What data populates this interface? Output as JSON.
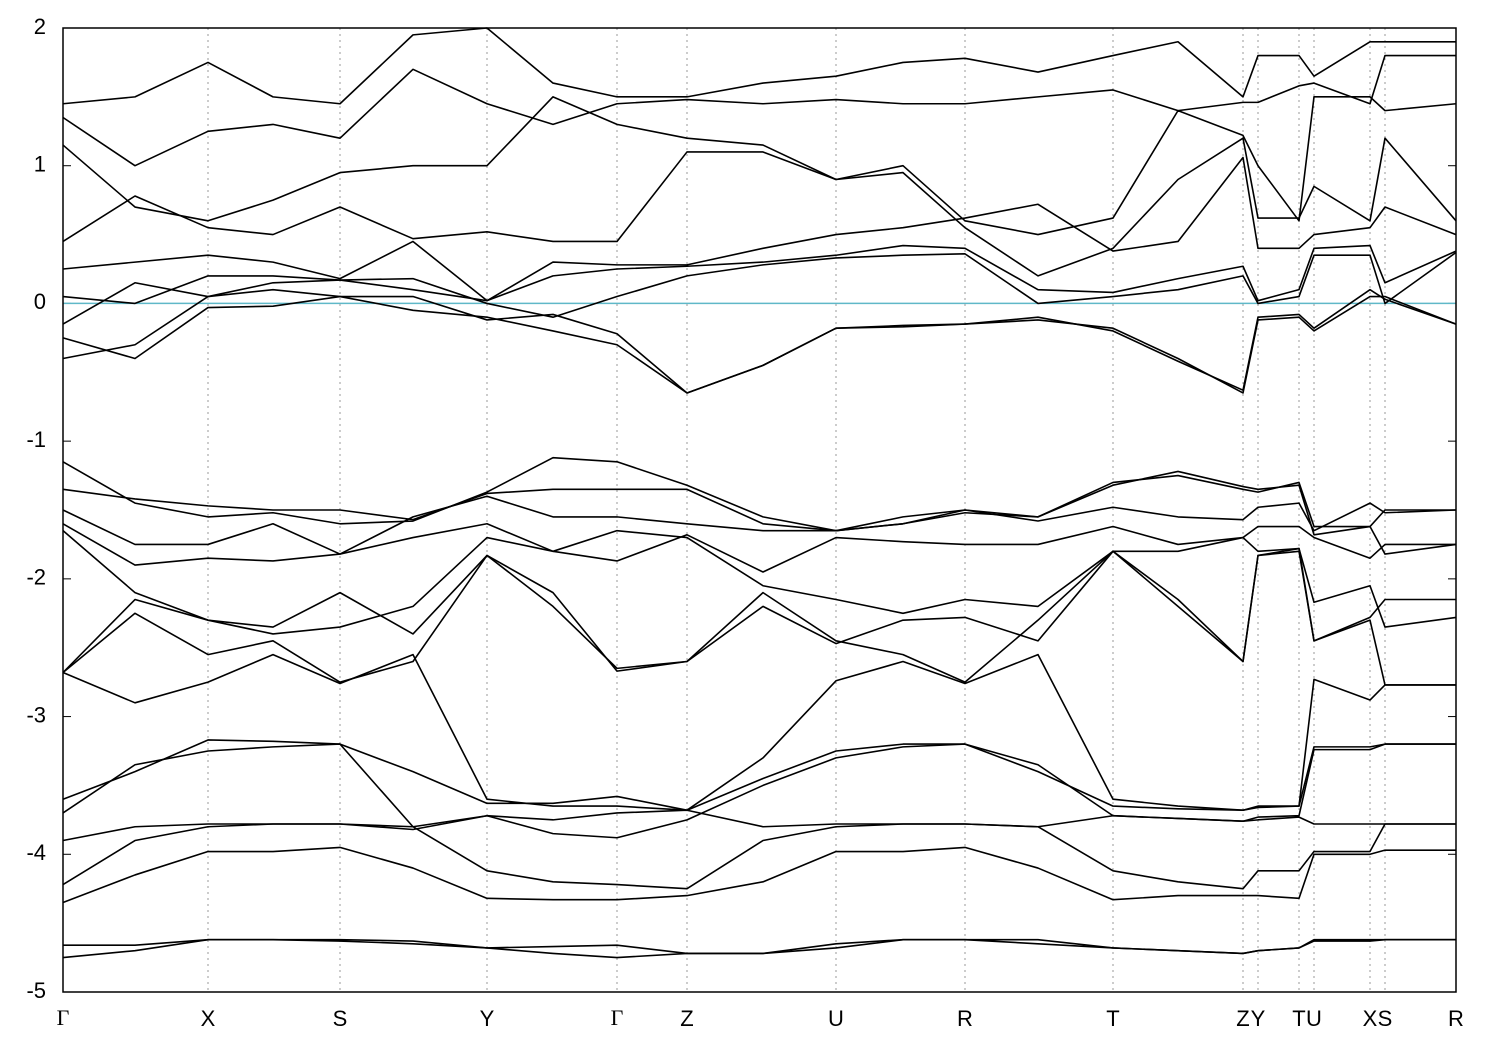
{
  "chart_data": {
    "type": "line",
    "x": [
      0,
      72,
      145,
      210,
      277,
      350,
      424,
      490,
      554,
      624,
      700,
      773,
      840,
      902,
      975,
      1050,
      1115,
      1180,
      1195,
      1236,
      1251,
      1307,
      1322,
      1393
    ],
    "xlim": [
      0,
      1393
    ],
    "xticks": [
      {
        "value": 0,
        "label": "Γ"
      },
      {
        "value": 145,
        "label": "X"
      },
      {
        "value": 277,
        "label": "S"
      },
      {
        "value": 424,
        "label": "Y"
      },
      {
        "value": 554,
        "label": "Γ"
      },
      {
        "value": 624,
        "label": "Z"
      },
      {
        "value": 773,
        "label": "U"
      },
      {
        "value": 902,
        "label": "R"
      },
      {
        "value": 1050,
        "label": "T"
      },
      {
        "value": 1180,
        "label": "Z"
      },
      {
        "value": 1195,
        "label": "Y"
      },
      {
        "value": 1236,
        "label": "T"
      },
      {
        "value": 1251,
        "label": "U"
      },
      {
        "value": 1307,
        "label": "X"
      },
      {
        "value": 1322,
        "label": "S"
      },
      {
        "value": 1393,
        "label": "R"
      }
    ],
    "ylim": [
      -5,
      2
    ],
    "yticks": [
      -5,
      -4,
      -3,
      -2,
      -1,
      0,
      1,
      2
    ],
    "grid": true,
    "fermi_level": 0,
    "fermi_color": "#5fb8c8",
    "series": [
      {
        "color": "#000000",
        "values": [
          -4.75,
          -4.7,
          -4.62,
          -4.62,
          -4.63,
          -4.65,
          -4.68,
          -4.72,
          -4.75,
          -4.72,
          -4.72,
          -4.68,
          -4.62,
          -4.62,
          -4.65,
          -4.68,
          -4.7,
          -4.72,
          -4.7,
          -4.68,
          -4.62,
          -4.62,
          -4.62,
          -4.62
        ]
      },
      {
        "color": "#000000",
        "values": [
          -4.66,
          -4.66,
          -4.62,
          -4.62,
          -4.62,
          -4.63,
          -4.68,
          -4.67,
          -4.66,
          -4.72,
          -4.72,
          -4.65,
          -4.62,
          -4.62,
          -4.62,
          -4.68,
          -4.7,
          -4.72,
          -4.7,
          -4.68,
          -4.63,
          -4.63,
          -4.62,
          -4.62
        ]
      },
      {
        "color": "#000000",
        "values": [
          -4.35,
          -4.15,
          -3.98,
          -3.98,
          -3.95,
          -4.1,
          -4.32,
          -4.33,
          -4.33,
          -4.3,
          -4.2,
          -3.98,
          -3.98,
          -3.95,
          -4.1,
          -4.33,
          -4.3,
          -4.3,
          -4.3,
          -4.32,
          -4.0,
          -4.0,
          -3.97,
          -3.97
        ]
      },
      {
        "color": "#000000",
        "values": [
          -4.22,
          -3.9,
          -3.8,
          -3.78,
          -3.78,
          -3.8,
          -4.12,
          -4.2,
          -4.22,
          -4.25,
          -3.9,
          -3.8,
          -3.78,
          -3.78,
          -3.8,
          -4.12,
          -4.2,
          -4.25,
          -4.12,
          -4.12,
          -3.98,
          -3.98,
          -3.78,
          -3.78
        ]
      },
      {
        "color": "#000000",
        "values": [
          -3.9,
          -3.8,
          -3.78,
          -3.78,
          -3.78,
          -3.82,
          -3.72,
          -3.75,
          -3.7,
          -3.68,
          -3.8,
          -3.78,
          -3.78,
          -3.78,
          -3.8,
          -3.72,
          -3.74,
          -3.76,
          -3.75,
          -3.73,
          -3.78,
          -3.78,
          -3.78,
          -3.78
        ]
      },
      {
        "color": "#000000",
        "values": [
          -3.6,
          -3.4,
          -3.17,
          -3.18,
          -3.2,
          -3.4,
          -3.63,
          -3.63,
          -3.58,
          -3.68,
          -3.45,
          -3.25,
          -3.2,
          -3.2,
          -3.4,
          -3.65,
          -3.67,
          -3.68,
          -3.66,
          -3.65,
          -3.22,
          -3.22,
          -3.2,
          -3.2
        ]
      },
      {
        "color": "#000000",
        "values": [
          -3.7,
          -3.35,
          -3.25,
          -3.22,
          -3.2,
          -3.8,
          -3.72,
          -3.85,
          -3.88,
          -3.75,
          -3.5,
          -3.3,
          -3.22,
          -3.2,
          -3.35,
          -3.72,
          -3.74,
          -3.76,
          -3.73,
          -3.72,
          -3.24,
          -3.24,
          -3.2,
          -3.2
        ]
      },
      {
        "color": "#000000",
        "values": [
          -2.68,
          -2.9,
          -2.75,
          -2.55,
          -2.76,
          -2.55,
          -3.6,
          -3.65,
          -3.65,
          -3.68,
          -3.3,
          -2.74,
          -2.6,
          -2.76,
          -2.55,
          -3.6,
          -3.65,
          -3.68,
          -3.65,
          -3.65,
          -2.73,
          -2.88,
          -2.77,
          -2.77
        ]
      },
      {
        "color": "#000000",
        "values": [
          -2.68,
          -2.25,
          -2.55,
          -2.45,
          -2.75,
          -2.6,
          -1.83,
          -2.2,
          -2.65,
          -2.6,
          -2.1,
          -2.45,
          -2.55,
          -2.75,
          -2.3,
          -1.8,
          -2.2,
          -2.6,
          -1.83,
          -1.8,
          -2.45,
          -2.3,
          -2.77,
          -2.77
        ]
      },
      {
        "color": "#000000",
        "values": [
          -2.68,
          -2.15,
          -2.3,
          -2.35,
          -2.1,
          -2.4,
          -1.83,
          -2.1,
          -2.67,
          -2.6,
          -2.2,
          -2.47,
          -2.3,
          -2.28,
          -2.45,
          -1.8,
          -2.15,
          -2.6,
          -1.83,
          -1.78,
          -2.17,
          -2.05,
          -2.35,
          -2.28
        ]
      },
      {
        "color": "#000000",
        "values": [
          -1.65,
          -2.1,
          -2.3,
          -2.4,
          -2.35,
          -2.2,
          -1.7,
          -1.8,
          -1.65,
          -1.7,
          -2.05,
          -2.15,
          -2.25,
          -2.15,
          -2.2,
          -1.8,
          -1.8,
          -1.7,
          -1.8,
          -1.78,
          -2.45,
          -2.28,
          -2.15,
          -2.15
        ]
      },
      {
        "color": "#000000",
        "values": [
          -1.6,
          -1.9,
          -1.85,
          -1.87,
          -1.82,
          -1.7,
          -1.6,
          -1.8,
          -1.87,
          -1.68,
          -1.95,
          -1.7,
          -1.73,
          -1.75,
          -1.75,
          -1.62,
          -1.75,
          -1.7,
          -1.62,
          -1.62,
          -1.7,
          -1.85,
          -1.75,
          -1.75
        ]
      },
      {
        "color": "#000000",
        "values": [
          -1.5,
          -1.75,
          -1.75,
          -1.6,
          -1.82,
          -1.55,
          -1.4,
          -1.55,
          -1.55,
          -1.6,
          -1.65,
          -1.65,
          -1.6,
          -1.5,
          -1.58,
          -1.48,
          -1.55,
          -1.57,
          -1.48,
          -1.45,
          -1.65,
          -1.45,
          -1.52,
          -1.5
        ]
      },
      {
        "color": "#000000",
        "values": [
          -1.35,
          -1.42,
          -1.47,
          -1.5,
          -1.5,
          -1.57,
          -1.38,
          -1.35,
          -1.35,
          -1.35,
          -1.6,
          -1.65,
          -1.55,
          -1.5,
          -1.55,
          -1.3,
          -1.25,
          -1.35,
          -1.37,
          -1.3,
          -1.62,
          -1.62,
          -1.82,
          -1.75
        ]
      },
      {
        "color": "#000000",
        "values": [
          -1.15,
          -1.45,
          -1.55,
          -1.52,
          -1.6,
          -1.58,
          -1.37,
          -1.12,
          -1.15,
          -1.32,
          -1.55,
          -1.65,
          -1.6,
          -1.52,
          -1.55,
          -1.32,
          -1.22,
          -1.33,
          -1.35,
          -1.32,
          -1.68,
          -1.62,
          -1.5,
          -1.5
        ]
      },
      {
        "color": "#000000",
        "values": [
          -0.4,
          -0.3,
          0.05,
          0.1,
          0.05,
          -0.05,
          -0.1,
          -0.2,
          -0.3,
          -0.65,
          -0.45,
          -0.18,
          -0.17,
          -0.15,
          -0.12,
          -0.18,
          -0.4,
          -0.65,
          -0.12,
          -0.1,
          -0.2,
          0.05,
          0.05,
          -0.15
        ]
      },
      {
        "color": "#000000",
        "values": [
          -0.25,
          -0.4,
          -0.03,
          -0.02,
          0.05,
          0.05,
          -0.12,
          -0.08,
          -0.22,
          -0.65,
          -0.45,
          -0.18,
          -0.16,
          -0.15,
          -0.1,
          -0.2,
          -0.42,
          -0.63,
          -0.1,
          -0.08,
          -0.18,
          0.1,
          0.03,
          -0.15
        ]
      },
      {
        "color": "#000000",
        "values": [
          -0.15,
          0.15,
          0.05,
          0.15,
          0.17,
          0.18,
          0.0,
          -0.1,
          0.05,
          0.2,
          0.28,
          0.33,
          0.35,
          0.36,
          0.0,
          0.05,
          0.1,
          0.2,
          0.0,
          0.05,
          0.35,
          0.35,
          0.0,
          0.37
        ]
      },
      {
        "color": "#000000",
        "values": [
          0.05,
          0.0,
          0.2,
          0.2,
          0.17,
          0.1,
          0.02,
          0.2,
          0.25,
          0.27,
          0.3,
          0.35,
          0.42,
          0.4,
          0.1,
          0.08,
          0.18,
          0.27,
          0.02,
          0.1,
          0.4,
          0.42,
          0.15,
          0.38
        ]
      },
      {
        "color": "#000000",
        "values": [
          0.25,
          0.3,
          0.35,
          0.3,
          0.18,
          0.45,
          0.02,
          0.3,
          0.28,
          0.28,
          0.4,
          0.5,
          0.55,
          0.62,
          0.72,
          0.38,
          0.45,
          1.06,
          0.4,
          0.4,
          0.5,
          0.55,
          0.7,
          0.5
        ]
      },
      {
        "color": "#000000",
        "values": [
          0.45,
          0.78,
          0.55,
          0.5,
          0.7,
          0.47,
          0.52,
          0.45,
          0.45,
          1.1,
          1.1,
          0.9,
          0.95,
          0.55,
          0.2,
          0.4,
          0.9,
          1.2,
          0.62,
          0.62,
          0.85,
          0.6,
          1.2,
          0.6
        ]
      },
      {
        "color": "#000000",
        "values": [
          1.15,
          0.7,
          0.6,
          0.75,
          0.95,
          1.0,
          1.0,
          1.5,
          1.3,
          1.2,
          1.15,
          0.9,
          1.0,
          0.6,
          0.5,
          0.62,
          1.4,
          1.22,
          1.0,
          0.6,
          1.5,
          1.5,
          1.4,
          1.45
        ]
      },
      {
        "color": "#000000",
        "values": [
          1.35,
          1.0,
          1.25,
          1.3,
          1.2,
          1.7,
          1.45,
          1.3,
          1.45,
          1.48,
          1.45,
          1.48,
          1.45,
          1.45,
          1.5,
          1.55,
          1.4,
          1.46,
          1.46,
          1.58,
          1.6,
          1.45,
          1.8,
          1.8
        ]
      },
      {
        "color": "#000000",
        "values": [
          1.45,
          1.5,
          1.75,
          1.5,
          1.45,
          1.95,
          2.0,
          1.6,
          1.5,
          1.5,
          1.6,
          1.65,
          1.75,
          1.78,
          1.68,
          1.8,
          1.9,
          1.5,
          1.8,
          1.8,
          1.65,
          1.9,
          1.9,
          1.9
        ]
      }
    ]
  }
}
